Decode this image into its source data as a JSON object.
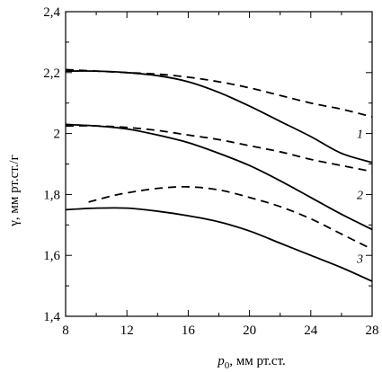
{
  "chart_data": {
    "type": "line",
    "title": "",
    "xlabel_main": "p",
    "xlabel_sub": "0",
    "xlabel_rest": ", мм рт.ст.",
    "ylabel": "γ, мм рт.ст./г",
    "xlim": [
      8,
      28
    ],
    "ylim": [
      1.4,
      2.4
    ],
    "x_ticks": [
      8,
      12,
      16,
      20,
      24,
      28
    ],
    "x_tick_labels": [
      "8",
      "12",
      "16",
      "20",
      "24",
      "28"
    ],
    "y_ticks": [
      1.4,
      1.6,
      1.8,
      2.0,
      2.2,
      2.4
    ],
    "y_tick_labels": [
      "1,4",
      "1,6",
      "1,8",
      "2",
      "2,2",
      "2,4"
    ],
    "grid": false,
    "series": [
      {
        "curve": "1",
        "style": "solid",
        "x": [
          8,
          10,
          12,
          14,
          16,
          18,
          20,
          22,
          24,
          26,
          28
        ],
        "y": [
          2.205,
          2.205,
          2.2,
          2.19,
          2.17,
          2.135,
          2.09,
          2.04,
          1.99,
          1.935,
          1.905
        ]
      },
      {
        "curve": "1",
        "style": "dashed",
        "x": [
          8,
          10,
          12,
          14,
          16,
          18,
          20,
          22,
          24,
          26,
          28
        ],
        "y": [
          2.21,
          2.205,
          2.2,
          2.195,
          2.185,
          2.17,
          2.15,
          2.125,
          2.1,
          2.08,
          2.055
        ]
      },
      {
        "curve": "2",
        "style": "solid",
        "x": [
          8,
          10,
          12,
          14,
          16,
          18,
          20,
          22,
          24,
          26,
          28
        ],
        "y": [
          2.03,
          2.025,
          2.015,
          1.995,
          1.97,
          1.935,
          1.895,
          1.845,
          1.79,
          1.735,
          1.685
        ]
      },
      {
        "curve": "2",
        "style": "dashed",
        "x": [
          8,
          10,
          12,
          14,
          16,
          18,
          20,
          22,
          24,
          26,
          28
        ],
        "y": [
          2.025,
          2.025,
          2.02,
          2.01,
          1.995,
          1.98,
          1.96,
          1.94,
          1.915,
          1.895,
          1.875
        ]
      },
      {
        "curve": "3",
        "style": "solid",
        "x": [
          8,
          10,
          12,
          14,
          16,
          18,
          20,
          22,
          24,
          26,
          28
        ],
        "y": [
          1.75,
          1.755,
          1.755,
          1.745,
          1.73,
          1.71,
          1.68,
          1.64,
          1.6,
          1.56,
          1.515
        ]
      },
      {
        "curve": "3",
        "style": "dashed",
        "x": [
          9.5,
          11,
          12,
          14,
          16,
          18,
          20,
          22,
          24,
          26,
          28
        ],
        "y": [
          1.775,
          1.795,
          1.805,
          1.82,
          1.825,
          1.815,
          1.79,
          1.76,
          1.72,
          1.67,
          1.62
        ]
      }
    ],
    "curve_labels": [
      {
        "text": "1",
        "x": 27.0,
        "y": 2.0
      },
      {
        "text": "2",
        "x": 27.0,
        "y": 1.8
      },
      {
        "text": "3",
        "x": 27.0,
        "y": 1.59
      }
    ]
  }
}
